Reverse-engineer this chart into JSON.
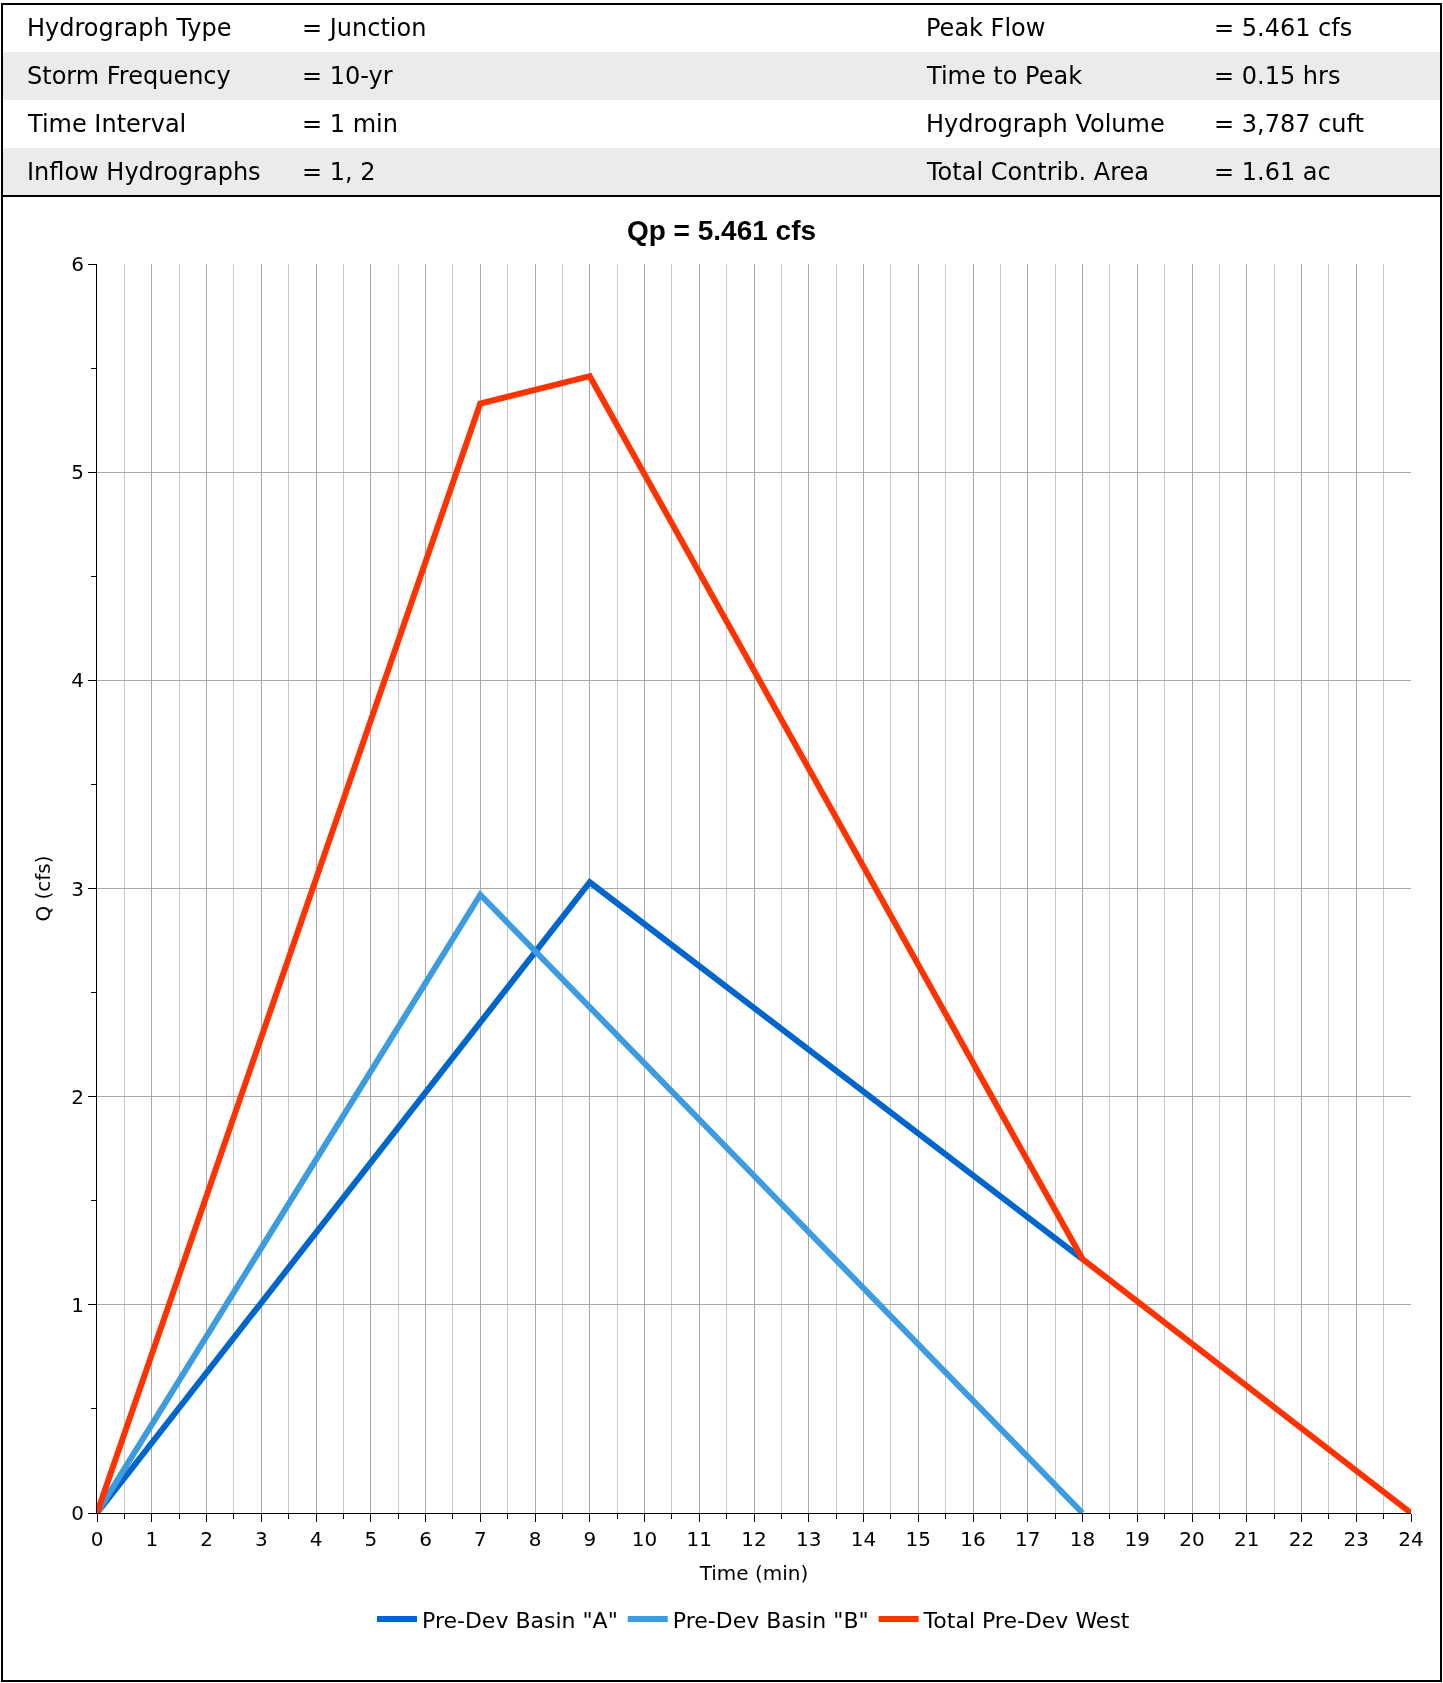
{
  "chart_data": {
    "type": "line",
    "title": "Qp = 5.461 cfs",
    "xlabel": "Time (min)",
    "ylabel": "Q (cfs)",
    "annotations": [
      "Hydrograph Type",
      "= Junction",
      "Peak Flow",
      "= 5.461 cfs",
      "Storm Frequency",
      "= 10-yr",
      "Time to Peak",
      "= 0.15 hrs",
      "Time Interval",
      "= 1 min",
      "Hydrograph Volume",
      "= 3,787 cuft",
      "Inflow Hydrographs",
      "= 1, 2",
      "Total Contrib. Area",
      "= 1.61 ac"
    ],
    "series": [
      {
        "name": "Pre-Dev Basin \"A\"",
        "color": "#0066cc",
        "x": [
          0,
          9,
          18
        ],
        "values": [
          0,
          3.03,
          1.22
        ]
      },
      {
        "name": "Pre-Dev Basin \"B\"",
        "color": "#3d9be0",
        "x": [
          0,
          7,
          18
        ],
        "values": [
          0,
          2.97,
          0
        ]
      },
      {
        "name": "Total Pre-Dev West",
        "color": "#ff3300",
        "x": [
          0,
          7,
          9,
          18,
          24
        ],
        "values": [
          0,
          5.33,
          5.461,
          1.22,
          0
        ]
      }
    ],
    "xlim": [
      0,
      24
    ],
    "xticks": [
      0,
      1,
      2,
      3,
      4,
      5,
      6,
      7,
      8,
      9,
      10,
      11,
      12,
      13,
      14,
      15,
      16,
      17,
      18,
      19,
      20,
      21,
      22,
      23,
      24
    ],
    "ylim": [
      0,
      6
    ],
    "yticks": [
      0,
      1,
      2,
      3,
      4,
      5,
      6
    ],
    "grid": true,
    "legend": "bottom",
    "marker": "none",
    "line_style": "solid"
  }
}
